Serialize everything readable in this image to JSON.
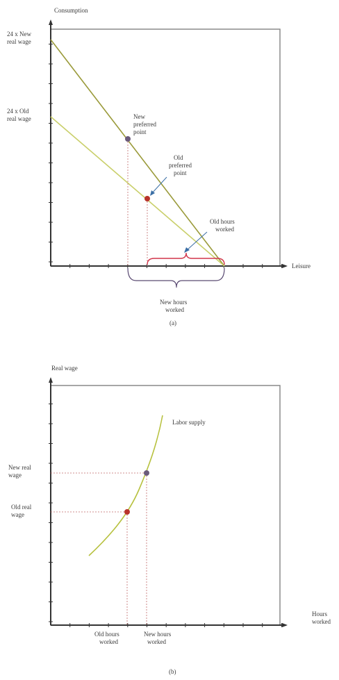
{
  "panel_a": {
    "y_axis_label": "Consumption",
    "x_axis_label": "Leisure",
    "new_wage_label": [
      "24 x New",
      "real wage"
    ],
    "old_wage_label": [
      "24 x Old",
      "real wage"
    ],
    "new_point_label": [
      "New",
      "preferred",
      "point"
    ],
    "old_point_label": [
      "Old",
      "preferred",
      "point"
    ],
    "old_hours_label": [
      "Old hours",
      "worked"
    ],
    "new_hours_label": [
      "New hours",
      "worked"
    ],
    "caption": "(a)"
  },
  "panel_b": {
    "y_axis_label": "Real wage",
    "x_axis_label": [
      "Hours",
      "worked"
    ],
    "new_wage_label": [
      "New real",
      "wage"
    ],
    "old_wage_label": [
      "Old real",
      "wage"
    ],
    "supply_label": "Labor supply",
    "old_hours_label": [
      "Old hours",
      "worked"
    ],
    "new_hours_label": [
      "New hours",
      "worked"
    ],
    "caption": "(b)"
  },
  "colors": {
    "new_budget_line": "#9a9a3a",
    "old_budget_line": "#c9cf6a",
    "labor_supply_curve": "#b7c13e",
    "new_point": "#6a5a7a",
    "old_point": "#b8322a",
    "brace": "#d2354a",
    "guide_lines": "#c06a6a",
    "axis": "#333333"
  }
}
